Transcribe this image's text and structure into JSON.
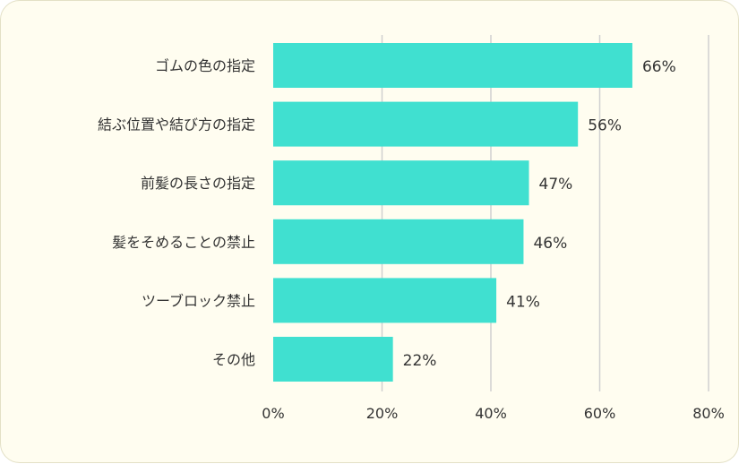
{
  "chart_data": {
    "type": "bar",
    "orientation": "horizontal",
    "categories": [
      "ゴムの色の指定",
      "結ぶ位置や結び方の指定",
      "前髪の長さの指定",
      "髪をそめることの禁止",
      "ツーブロック禁止",
      "その他"
    ],
    "values": [
      66,
      56,
      47,
      46,
      41,
      22
    ],
    "value_labels": [
      "66%",
      "56%",
      "47%",
      "46%",
      "41%",
      "22%"
    ],
    "xlim": [
      0,
      80
    ],
    "x_ticks": [
      0,
      20,
      40,
      60,
      80
    ],
    "x_tick_labels": [
      "0%",
      "20%",
      "40%",
      "60%",
      "80%"
    ],
    "grid": "vertical",
    "legend": "none",
    "bar_color": "#40e0d0",
    "grid_color": "#d0d0d0",
    "background_color": "#fffdf0"
  }
}
